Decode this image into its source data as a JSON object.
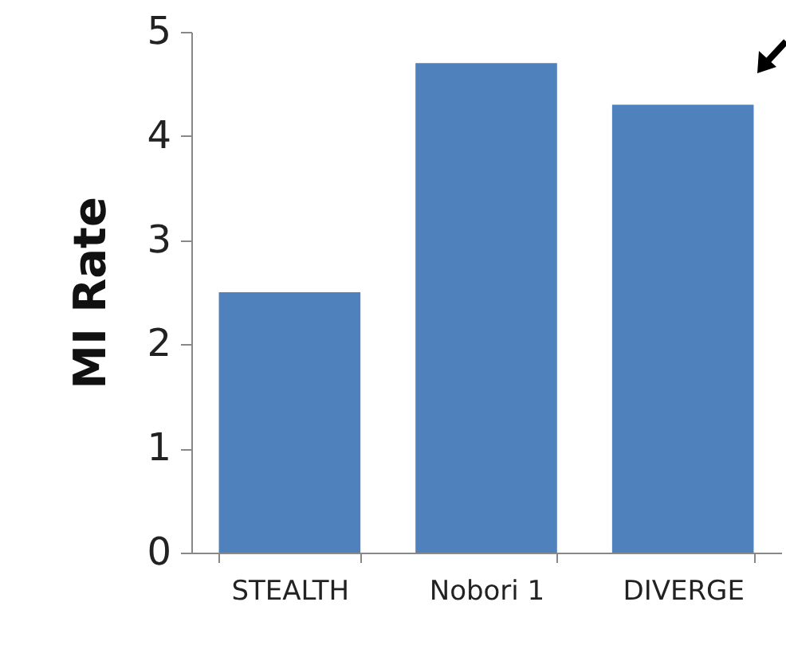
{
  "chart_data": {
    "type": "bar",
    "ylabel": "MI Rate",
    "categories": [
      "STEALTH",
      "Nobori 1",
      "DIVERGE"
    ],
    "values": [
      2.5,
      4.7,
      4.3
    ],
    "color": "#4f81bd",
    "ylim": [
      0,
      5
    ],
    "yticks": [
      0,
      1,
      2,
      3,
      4,
      5
    ],
    "grid": false
  }
}
